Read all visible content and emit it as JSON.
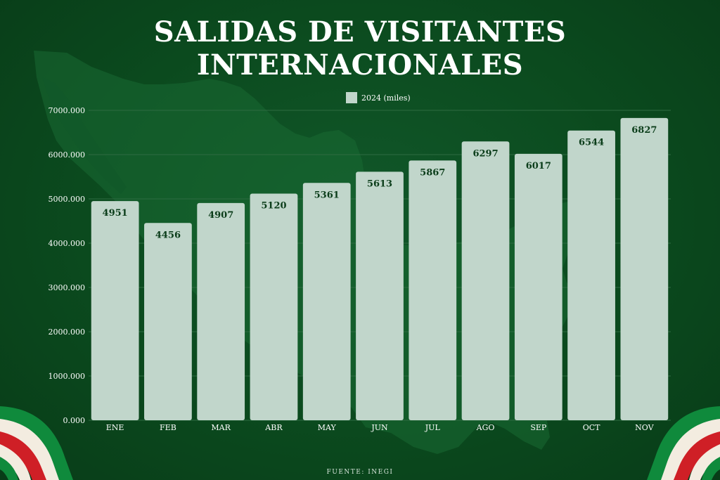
{
  "title": "SALIDAS DE VISITANTES INTERNACIONALES",
  "source": "FUENTE: INEGI",
  "colors": {
    "bar": "#c1d6cb",
    "bar_label": "#0b3d1a",
    "axis_text": "#ffffff",
    "grid": "#2e6b41",
    "flag_green": "#0f8a3c",
    "flag_white": "#f3ece0",
    "flag_red": "#cf1f26"
  },
  "chart_data": {
    "type": "bar",
    "categories": [
      "ENE",
      "FEB",
      "MAR",
      "ABR",
      "MAY",
      "JUN",
      "JUL",
      "AGO",
      "SEP",
      "OCT",
      "NOV"
    ],
    "series": [
      {
        "name": "2024 (miles)",
        "values": [
          4951,
          4456,
          4907,
          5120,
          5361,
          5613,
          5867,
          6297,
          6017,
          6544,
          6827
        ]
      }
    ],
    "y_ticks": [
      "0.000",
      "1000.000",
      "2000.000",
      "3000.000",
      "4000.000",
      "5000.000",
      "6000.000",
      "7000.000"
    ],
    "ylim": [
      0,
      7000
    ],
    "grid": true,
    "legend_position": "top-center",
    "data_labels": true
  }
}
